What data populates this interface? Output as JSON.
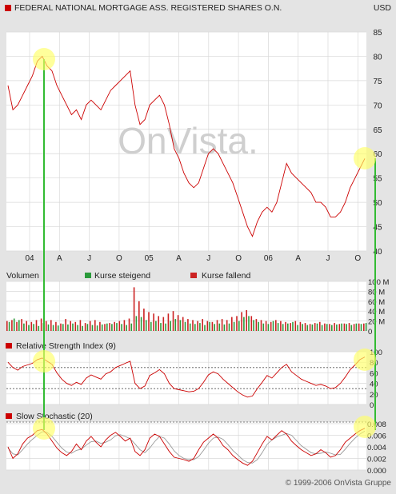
{
  "header": {
    "title": "FEDERAL NATIONAL MORTGAGE ASS. REGISTERED SHARES O.N.",
    "currency": "USD"
  },
  "footer": {
    "copyright": "© 1999-2006 OnVista Gruppe"
  },
  "watermark": "OnVista.",
  "colors": {
    "background": "#e4e4e4",
    "panel": "#ffffff",
    "price_line": "#cc0000",
    "volume_up": "#2a9a3a",
    "volume_down": "#cc2222",
    "highlight_circle": "#ffff66",
    "connector_line": "#33bb33",
    "signal_line": "#999999"
  },
  "chart_data": [
    {
      "type": "line",
      "title": "FEDERAL NATIONAL MORTGAGE ASS. REGISTERED SHARES O.N.",
      "ylabel": "USD",
      "ylim": [
        40,
        85
      ],
      "yticks": [
        40,
        45,
        50,
        55,
        60,
        65,
        70,
        75,
        80,
        85
      ],
      "x_tick_labels": [
        "04",
        "A",
        "J",
        "O",
        "05",
        "A",
        "J",
        "O",
        "06",
        "A",
        "J",
        "O"
      ],
      "grid": true,
      "series": [
        {
          "values": [
            74,
            69,
            70,
            72,
            74,
            76,
            79,
            80,
            78,
            77,
            74,
            72,
            70,
            68,
            69,
            67,
            70,
            71,
            70,
            69,
            71,
            73,
            74,
            75,
            76,
            77,
            70,
            66,
            67,
            70,
            71,
            72,
            70,
            66,
            61,
            59,
            56,
            54,
            53,
            54,
            57,
            60,
            61,
            60,
            58,
            56,
            54,
            51,
            48,
            45,
            43,
            46,
            48,
            49,
            48,
            50,
            54,
            58,
            56,
            55,
            54,
            53,
            52,
            50,
            50,
            49,
            47,
            47,
            48,
            50,
            53,
            55,
            57,
            59
          ]
        }
      ]
    },
    {
      "type": "bar",
      "title": "Volumen",
      "ylim": [
        0,
        100
      ],
      "yticks": [
        0,
        20,
        40,
        60,
        80,
        100
      ],
      "ytick_labels": [
        "0",
        "20 M",
        "40 M",
        "60 M",
        "80 M",
        "100 M"
      ],
      "legend": [
        "Kurse steigend",
        "Kurse fallend"
      ],
      "series": [
        {
          "name": "Kurse steigend",
          "values": [
            18,
            25,
            22,
            15,
            12,
            14,
            10,
            16,
            13,
            12,
            11,
            14,
            13,
            15,
            12,
            10,
            14,
            12,
            11,
            13,
            15,
            14,
            16,
            14,
            12,
            15,
            30,
            28,
            22,
            18,
            20,
            16,
            15,
            20,
            24,
            22,
            18,
            15,
            14,
            16,
            12,
            18,
            14,
            15,
            13,
            15,
            18,
            20,
            28,
            30,
            22,
            18,
            15,
            14,
            20,
            16,
            14,
            15,
            18,
            12,
            14,
            12,
            13,
            15,
            12,
            14,
            12,
            13,
            15,
            14,
            12,
            15,
            14,
            16
          ]
        },
        {
          "name": "Kurse fallend",
          "values": [
            20,
            22,
            18,
            24,
            20,
            18,
            22,
            25,
            20,
            22,
            18,
            15,
            24,
            20,
            18,
            22,
            16,
            20,
            22,
            18,
            14,
            16,
            18,
            20,
            22,
            25,
            88,
            60,
            45,
            38,
            35,
            30,
            28,
            35,
            40,
            32,
            28,
            24,
            22,
            20,
            24,
            20,
            18,
            22,
            24,
            22,
            28,
            30,
            38,
            42,
            30,
            24,
            22,
            20,
            18,
            22,
            20,
            18,
            16,
            20,
            18,
            16,
            14,
            16,
            18,
            15,
            14,
            16,
            14,
            15,
            16,
            14,
            15,
            15
          ]
        }
      ]
    },
    {
      "type": "line",
      "title": "Relative Strength Index (9)",
      "ylim": [
        0,
        100
      ],
      "yticks": [
        0,
        20,
        40,
        60,
        80,
        100
      ],
      "reference_lines": [
        30,
        70
      ],
      "series": [
        {
          "values": [
            80,
            70,
            65,
            72,
            75,
            78,
            85,
            88,
            82,
            76,
            60,
            48,
            40,
            36,
            42,
            38,
            50,
            56,
            52,
            48,
            58,
            62,
            70,
            74,
            78,
            82,
            40,
            30,
            35,
            55,
            60,
            66,
            58,
            40,
            30,
            28,
            26,
            24,
            25,
            30,
            42,
            56,
            62,
            58,
            48,
            40,
            32,
            24,
            18,
            14,
            16,
            30,
            42,
            55,
            50,
            60,
            70,
            76,
            62,
            55,
            48,
            44,
            40,
            36,
            38,
            35,
            30,
            32,
            40,
            52,
            66,
            75,
            85,
            90
          ]
        }
      ]
    },
    {
      "type": "line",
      "title": "Slow Stochastic (20)",
      "ylim": [
        0,
        0.008
      ],
      "yticks": [
        0,
        0.002,
        0.004,
        0.006,
        0.008
      ],
      "ytick_labels": [
        "0.000",
        "0.002",
        "0.004",
        "0.006",
        "0.008"
      ],
      "series": [
        {
          "values": [
            0.004,
            0.002,
            0.0028,
            0.0045,
            0.0055,
            0.006,
            0.0068,
            0.007,
            0.0062,
            0.005,
            0.0038,
            0.003,
            0.0025,
            0.0032,
            0.0045,
            0.0035,
            0.005,
            0.0058,
            0.0048,
            0.004,
            0.0052,
            0.006,
            0.0065,
            0.0058,
            0.005,
            0.0055,
            0.0032,
            0.0025,
            0.0035,
            0.0055,
            0.0062,
            0.0058,
            0.0045,
            0.0032,
            0.0022,
            0.002,
            0.0018,
            0.0015,
            0.002,
            0.0035,
            0.0048,
            0.0055,
            0.0062,
            0.0055,
            0.0042,
            0.0035,
            0.0025,
            0.0018,
            0.0012,
            0.0008,
            0.0015,
            0.003,
            0.0045,
            0.0058,
            0.0052,
            0.006,
            0.0068,
            0.0062,
            0.005,
            0.0042,
            0.0035,
            0.003,
            0.0025,
            0.0028,
            0.0035,
            0.003,
            0.0022,
            0.0025,
            0.0035,
            0.0048,
            0.0055,
            0.0062,
            0.0068,
            0.0072
          ]
        },
        {
          "values": [
            0.0038,
            0.0028,
            0.0026,
            0.0035,
            0.0045,
            0.0053,
            0.006,
            0.0066,
            0.0065,
            0.0058,
            0.0048,
            0.0038,
            0.0031,
            0.0029,
            0.0034,
            0.0036,
            0.0043,
            0.0049,
            0.005,
            0.0046,
            0.0048,
            0.0052,
            0.0059,
            0.0061,
            0.0058,
            0.0054,
            0.0045,
            0.0035,
            0.003,
            0.0038,
            0.0049,
            0.0058,
            0.0055,
            0.0045,
            0.0033,
            0.0025,
            0.002,
            0.0018,
            0.0018,
            0.0023,
            0.0034,
            0.0046,
            0.0055,
            0.0057,
            0.0053,
            0.0044,
            0.0034,
            0.0026,
            0.0018,
            0.0013,
            0.0012,
            0.0018,
            0.003,
            0.0044,
            0.0052,
            0.0057,
            0.006,
            0.0063,
            0.006,
            0.0051,
            0.0042,
            0.0036,
            0.003,
            0.0028,
            0.0029,
            0.0031,
            0.0029,
            0.0026,
            0.0027,
            0.0036,
            0.0046,
            0.0055,
            0.0062,
            0.0067
          ]
        }
      ]
    }
  ]
}
